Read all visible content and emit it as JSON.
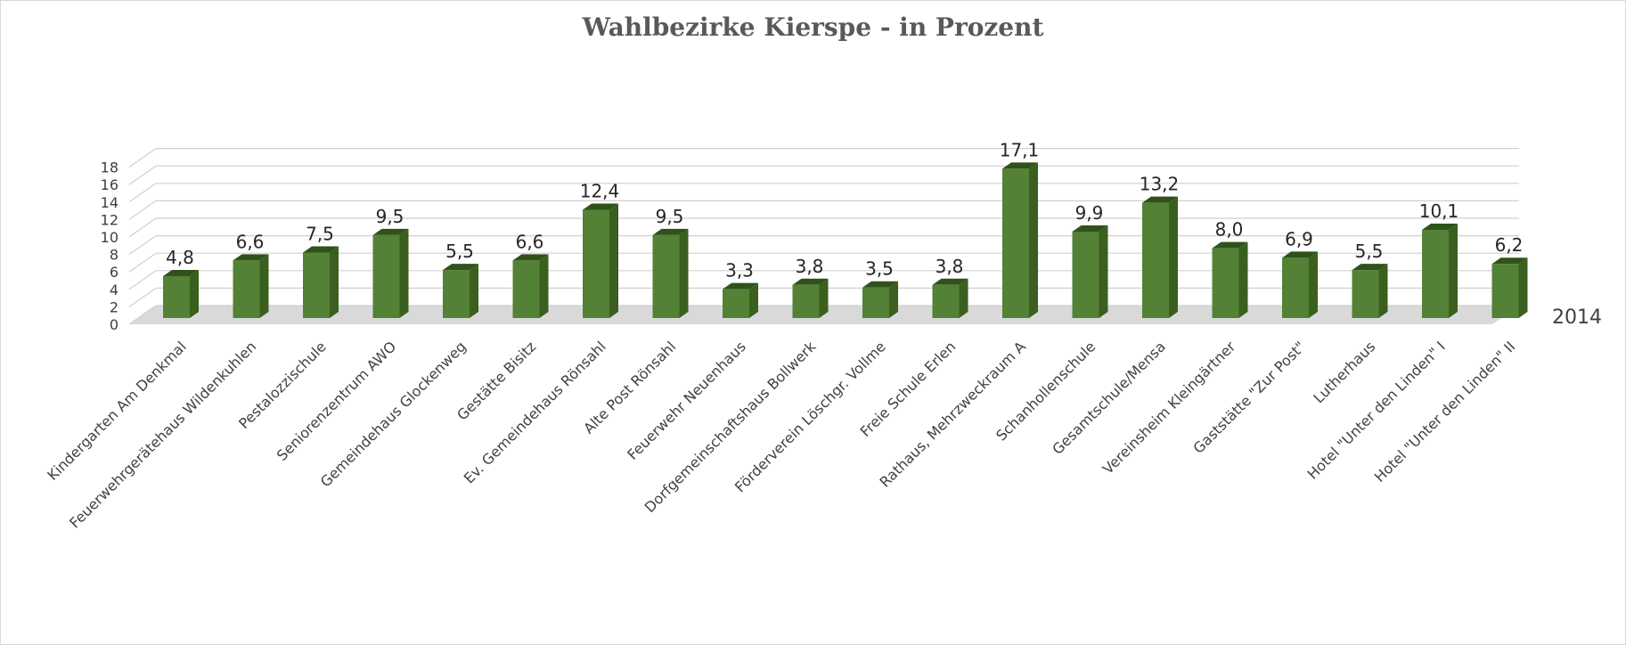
{
  "chart_data": {
    "type": "bar",
    "title": "Wahlbezirke Kierspe - in Prozent",
    "xlabel": "",
    "ylabel": "",
    "ylim": [
      0,
      18
    ],
    "yticks": [
      0,
      2,
      4,
      6,
      8,
      10,
      12,
      14,
      16,
      18
    ],
    "grid": true,
    "three_d": true,
    "bar_color": "#538135",
    "bar_side_color": "#3a5f1f",
    "bar_top_color": "#30521a",
    "categories": [
      "Kindergarten Am Denkmal",
      "Feuerwehrgerätehaus Wildenkuhlen",
      "Pestalozzischule",
      "Seniorenzentrum AWO",
      "Gemeindehaus Glockenweg",
      "Gestätte Bisitz",
      "Ev. Gemeindehaus Rönsahl",
      "Alte Post Rönsahl",
      "Feuerwehr Neuenhaus",
      "Dorfgemeinschaftshaus Bollwerk",
      "Förderverein Löschgr. Vollme",
      "Freie Schule Erlen",
      "Rathaus, Mehrzweckraum A",
      "Schanhollenschule",
      "Gesamtschule/Mensa",
      "Vereinsheim Kleingärtner",
      "Gaststätte \"Zur Post\"",
      "Lutherhaus",
      "Hotel \"Unter den Linden\" I",
      "Hotel \"Unter den Linden\" II"
    ],
    "series": [
      {
        "name": "2014",
        "values": [
          4.8,
          6.6,
          7.5,
          9.5,
          5.5,
          6.6,
          12.4,
          9.5,
          3.3,
          3.8,
          3.5,
          3.8,
          17.1,
          9.9,
          13.2,
          8.0,
          6.9,
          5.5,
          10.1,
          6.2
        ],
        "labels": [
          "4,8",
          "6,6",
          "7,5",
          "9,5",
          "5,5",
          "6,6",
          "12,4",
          "9,5",
          "3,3",
          "3,8",
          "3,5",
          "3,8",
          "17,1",
          "9,9",
          "13,2",
          "8,0",
          "6,9",
          "5,5",
          "10,1",
          "6,2"
        ]
      }
    ]
  }
}
